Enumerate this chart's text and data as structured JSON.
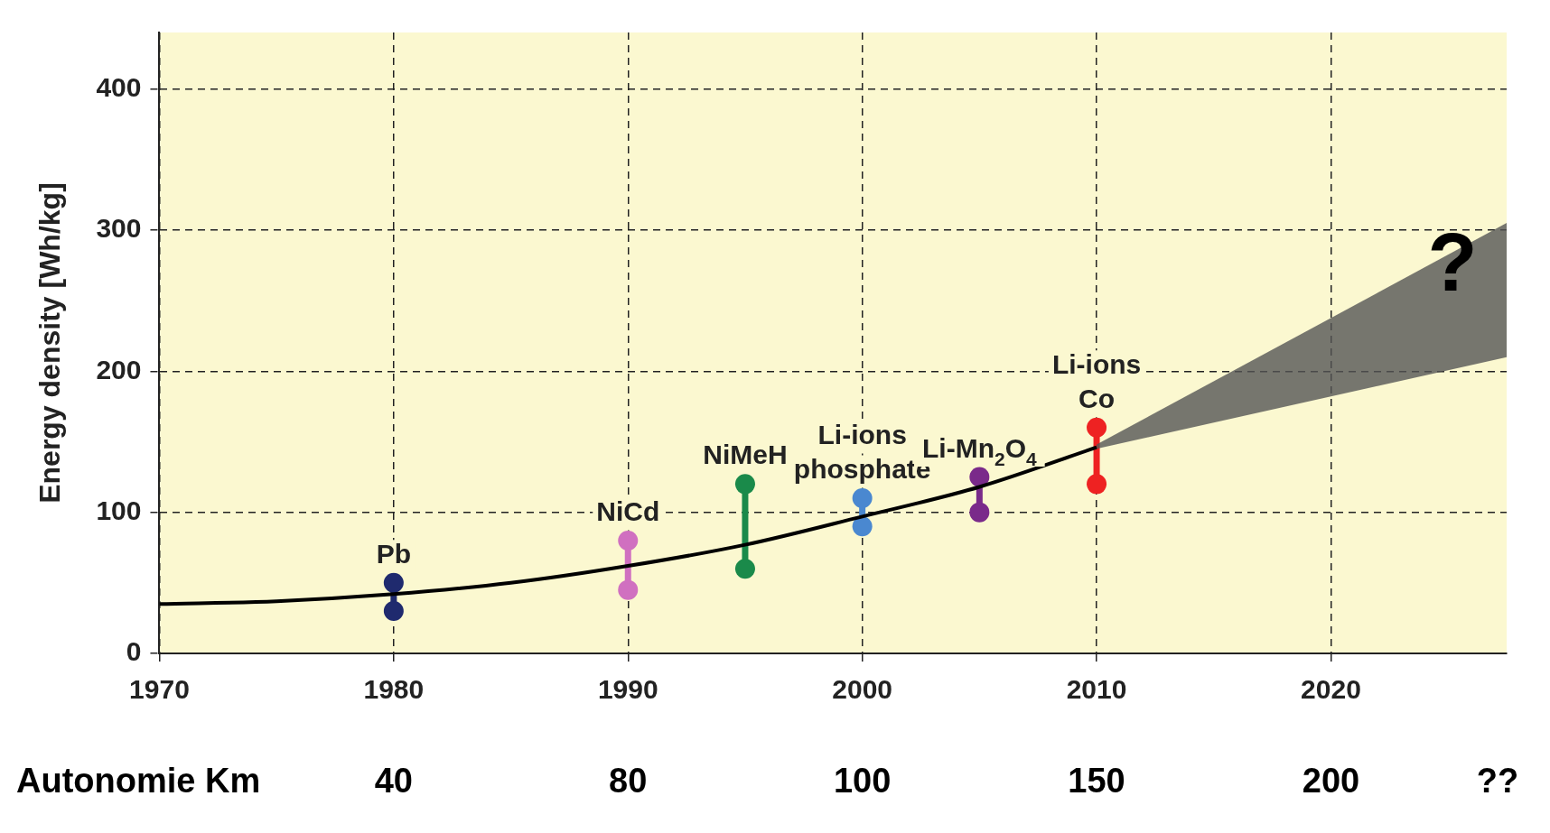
{
  "chart_data": {
    "type": "line",
    "ylabel": "Energy density [Wh/kg]",
    "xlim": [
      1970,
      2027.5
    ],
    "xticks": [
      1970,
      1980,
      1990,
      2000,
      2010,
      2020
    ],
    "ylim": [
      0,
      440
    ],
    "yticks": [
      0,
      100,
      200,
      300,
      400
    ],
    "grid": true,
    "marker": "circle",
    "series": [
      {
        "type": "line",
        "color": "#000000",
        "x": [
          1970,
          1975,
          1980,
          1985,
          1990,
          1995,
          2000,
          2005,
          2010
        ],
        "values": [
          35,
          37,
          42,
          50,
          62,
          77,
          97,
          118,
          146
        ],
        "marker": "none"
      },
      {
        "type": "area",
        "color": "#555555",
        "x": [
          2010,
          2027.5
        ],
        "values": [
          null,
          null
        ],
        "lower": [
          145,
          210
        ],
        "upper": [
          148,
          305
        ],
        "marker": "none"
      },
      {
        "name": "Pb",
        "color": "#1f2a6e",
        "x": [
          1980,
          1980
        ],
        "values": [
          30,
          50
        ]
      },
      {
        "name": "NiCd",
        "color": "#d070c0",
        "x": [
          1990,
          1990
        ],
        "values": [
          45,
          80
        ]
      },
      {
        "name": "NiMeH",
        "color": "#1a8a4a",
        "x": [
          1995,
          1995
        ],
        "values": [
          60,
          120
        ]
      },
      {
        "name": "Li-ions\nphosphate",
        "color": "#4a88d0",
        "x": [
          2000,
          2000
        ],
        "values": [
          90,
          110
        ]
      },
      {
        "name": "Li-Mn$_{2}$O$_{4}$",
        "color": "#7a2a8a",
        "x": [
          2005,
          2005
        ],
        "values": [
          100,
          125
        ]
      },
      {
        "name": "Li-ions\nCo",
        "color": "#ee2222",
        "x": [
          2010,
          2010
        ],
        "values": [
          120,
          160
        ]
      }
    ],
    "annotations": [
      "?",
      "Autonomie Km",
      "40",
      "80",
      "100",
      "150",
      "200",
      "??"
    ]
  }
}
